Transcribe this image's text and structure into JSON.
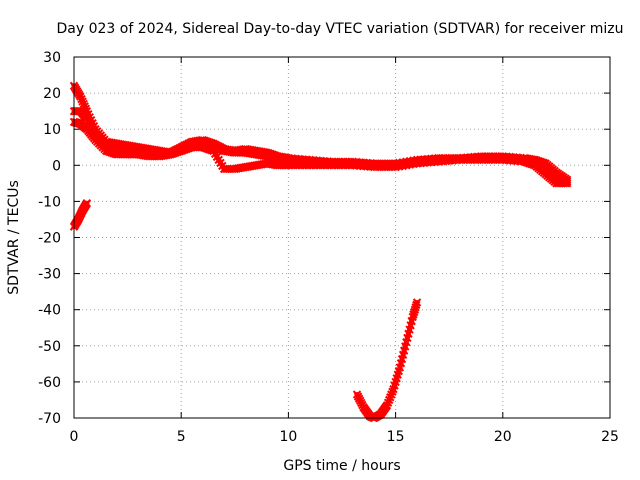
{
  "chart_data": {
    "type": "scatter",
    "title": "Day 023 of 2024, Sidereal Day-to-day VTEC variation (SDTVAR) for receiver mizu",
    "xlabel": "GPS time / hours",
    "ylabel": "SDTVAR / TECUs",
    "xlim": [
      0,
      25
    ],
    "ylim": [
      -70,
      30
    ],
    "xticks": [
      0,
      5,
      10,
      15,
      20,
      25
    ],
    "yticks": [
      -70,
      -60,
      -50,
      -40,
      -30,
      -20,
      -10,
      0,
      10,
      20,
      30
    ],
    "grid": true,
    "marker_color": "#ff0000",
    "series": [
      {
        "name": "band-upper",
        "x": [
          0.0,
          0.3,
          0.6,
          1.0,
          1.5,
          2.0,
          2.5,
          3.0,
          3.5,
          4.0,
          4.5,
          5.0,
          5.5,
          6.0,
          6.5,
          7.0,
          7.5,
          8.0,
          8.5,
          9.0,
          9.5,
          10.0,
          11.0,
          12.0,
          13.0,
          14.0,
          15.0,
          16.0,
          17.0,
          18.0,
          19.0,
          20.0,
          21.0,
          21.5,
          22.0,
          22.5,
          23.0
        ],
        "y": [
          22.0,
          19.0,
          15.0,
          10.0,
          6.5,
          6.0,
          5.5,
          5.0,
          4.5,
          4.0,
          3.5,
          5.0,
          6.5,
          7.0,
          6.0,
          4.5,
          4.0,
          4.5,
          4.0,
          3.5,
          2.5,
          2.0,
          1.5,
          1.0,
          1.0,
          0.5,
          0.5,
          1.5,
          2.0,
          2.0,
          2.5,
          2.5,
          2.0,
          1.5,
          0.5,
          -2.0,
          -4.0
        ]
      },
      {
        "name": "band-mid",
        "x": [
          0.0,
          0.3,
          0.6,
          1.0,
          1.5,
          2.0,
          2.5,
          3.0,
          3.5,
          4.0,
          4.5,
          5.0,
          5.5,
          6.0,
          6.5,
          7.0,
          7.5,
          8.0,
          8.5,
          9.0,
          9.5,
          10.0,
          11.0,
          12.0,
          13.0,
          14.0,
          15.0,
          16.0,
          17.0,
          18.0,
          19.0,
          20.0,
          21.0,
          21.5,
          22.0,
          22.5,
          23.0
        ],
        "y": [
          15.0,
          15.0,
          13.0,
          9.0,
          5.0,
          4.0,
          3.5,
          3.0,
          3.0,
          3.0,
          3.5,
          4.5,
          5.5,
          6.0,
          5.0,
          4.0,
          3.5,
          3.5,
          3.0,
          2.5,
          1.5,
          1.0,
          1.0,
          0.5,
          0.5,
          0.0,
          0.0,
          1.0,
          1.5,
          2.0,
          2.0,
          2.0,
          1.5,
          0.5,
          -1.5,
          -4.0,
          -4.5
        ]
      },
      {
        "name": "band-lower",
        "x": [
          0.0,
          0.3,
          0.6,
          1.0,
          1.5,
          2.0,
          2.5,
          3.0,
          3.5,
          4.0,
          4.5,
          5.0,
          5.5,
          6.0,
          6.5,
          7.0,
          7.5,
          8.0,
          8.5,
          9.0,
          9.5,
          10.0,
          11.0,
          12.0,
          13.0,
          14.0,
          15.0,
          16.0,
          17.0,
          18.0,
          19.0,
          20.0,
          21.0,
          21.5,
          22.0,
          22.5,
          23.0
        ],
        "y": [
          12.0,
          11.5,
          10.0,
          7.0,
          4.0,
          3.0,
          3.0,
          3.0,
          2.5,
          2.5,
          3.0,
          4.0,
          5.0,
          5.0,
          4.0,
          -1.0,
          -1.0,
          -0.5,
          0.0,
          0.5,
          0.0,
          0.0,
          0.0,
          0.0,
          0.0,
          -0.5,
          -0.5,
          0.5,
          1.0,
          1.5,
          1.5,
          1.5,
          1.0,
          0.0,
          -2.5,
          -5.0,
          -5.0
        ]
      },
      {
        "name": "early-negative",
        "x": [
          0.0,
          0.2,
          0.4,
          0.6
        ],
        "y": [
          -17.0,
          -15.0,
          -12.5,
          -10.5
        ]
      },
      {
        "name": "deep-dip",
        "x": [
          13.2,
          13.5,
          13.8,
          14.0,
          14.3,
          14.6,
          14.9,
          15.2,
          15.5,
          15.8,
          16.0
        ],
        "y": [
          -63.5,
          -67.0,
          -69.5,
          -70.0,
          -69.0,
          -66.5,
          -62.0,
          -56.0,
          -49.0,
          -42.0,
          -38.0
        ]
      }
    ]
  }
}
